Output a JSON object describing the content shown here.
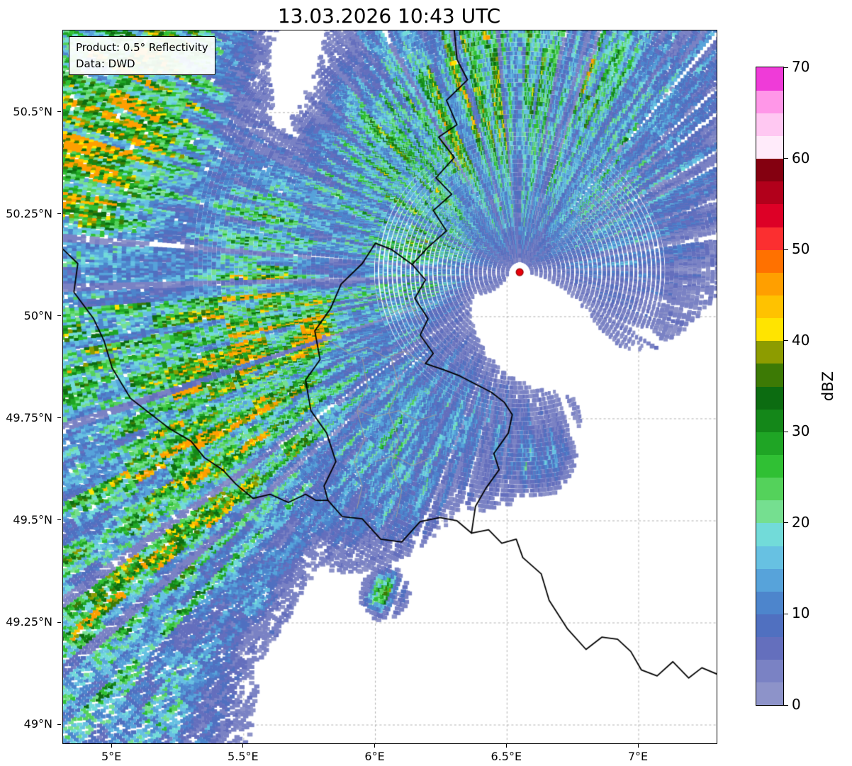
{
  "title": "13.03.2026 10:43 UTC",
  "annotation": {
    "line1": "Product: 0.5° Reflectivity",
    "line2": "Data: DWD"
  },
  "map": {
    "extent": {
      "lon_min": 4.814,
      "lon_max": 7.296,
      "lat_min": 48.955,
      "lat_max": 50.701
    },
    "x_ticks": [
      {
        "label": "5°E",
        "lon": 5.0
      },
      {
        "label": "5.5°E",
        "lon": 5.5
      },
      {
        "label": "6°E",
        "lon": 6.0
      },
      {
        "label": "6.5°E",
        "lon": 6.5
      },
      {
        "label": "7°E",
        "lon": 7.0
      }
    ],
    "y_ticks": [
      {
        "label": "50.5°N",
        "lat": 50.5
      },
      {
        "label": "50.25°N",
        "lat": 50.25
      },
      {
        "label": "50°N",
        "lat": 50.0
      },
      {
        "label": "49.75°N",
        "lat": 49.75
      },
      {
        "label": "49.5°N",
        "lat": 49.5
      },
      {
        "label": "49.25°N",
        "lat": 49.25
      },
      {
        "label": "49°N",
        "lat": 49.0
      }
    ],
    "grid_color": "#b0b0b0",
    "border_color": "#000000",
    "admin_border_color": "#9a9a9a",
    "radar_site": {
      "lon": 6.548,
      "lat": 50.109,
      "marker_color": "#e8000b",
      "marker_edge": "#8f0000"
    },
    "borders": [
      [
        [
          6.3,
          50.701
        ],
        [
          6.31,
          50.63
        ],
        [
          6.35,
          50.58
        ],
        [
          6.27,
          50.53
        ],
        [
          6.31,
          50.47
        ],
        [
          6.24,
          50.44
        ],
        [
          6.3,
          50.39
        ],
        [
          6.23,
          50.34
        ],
        [
          6.29,
          50.3
        ],
        [
          6.22,
          50.26
        ],
        [
          6.27,
          50.21
        ],
        [
          6.2,
          50.17
        ],
        [
          6.14,
          50.128
        ]
      ],
      [
        [
          6.14,
          50.128
        ],
        [
          6.19,
          50.09
        ],
        [
          6.15,
          50.045
        ],
        [
          6.2,
          49.995
        ],
        [
          6.17,
          49.955
        ],
        [
          6.22,
          49.91
        ],
        [
          6.19,
          49.885
        ],
        [
          6.26,
          49.87
        ],
        [
          6.32,
          49.855
        ],
        [
          6.38,
          49.835
        ],
        [
          6.44,
          49.815
        ],
        [
          6.49,
          49.79
        ],
        [
          6.52,
          49.76
        ],
        [
          6.505,
          49.715
        ],
        [
          6.45,
          49.665
        ],
        [
          6.47,
          49.625
        ],
        [
          6.42,
          49.58
        ],
        [
          6.38,
          49.535
        ],
        [
          6.365,
          49.47
        ]
      ],
      [
        [
          6.365,
          49.47
        ],
        [
          6.43,
          49.478
        ],
        [
          6.48,
          49.445
        ],
        [
          6.535,
          49.455
        ],
        [
          6.56,
          49.41
        ],
        [
          6.63,
          49.37
        ],
        [
          6.66,
          49.305
        ],
        [
          6.73,
          49.235
        ],
        [
          6.8,
          49.185
        ],
        [
          6.86,
          49.215
        ],
        [
          6.92,
          49.21
        ],
        [
          6.97,
          49.18
        ],
        [
          7.01,
          49.135
        ],
        [
          7.07,
          49.12
        ],
        [
          7.13,
          49.155
        ],
        [
          7.19,
          49.115
        ],
        [
          7.24,
          49.14
        ],
        [
          7.296,
          49.125
        ]
      ],
      [
        [
          6.14,
          50.128
        ],
        [
          6.06,
          50.165
        ],
        [
          6.0,
          50.18
        ],
        [
          5.95,
          50.13
        ],
        [
          5.87,
          50.08
        ],
        [
          5.83,
          50.02
        ],
        [
          5.77,
          49.965
        ],
        [
          5.79,
          49.895
        ],
        [
          5.735,
          49.845
        ],
        [
          5.755,
          49.77
        ],
        [
          5.815,
          49.715
        ],
        [
          5.85,
          49.645
        ],
        [
          5.805,
          49.585
        ],
        [
          5.82,
          49.55
        ]
      ],
      [
        [
          5.82,
          49.55
        ],
        [
          5.875,
          49.51
        ],
        [
          5.95,
          49.505
        ],
        [
          6.02,
          49.455
        ],
        [
          6.1,
          49.448
        ],
        [
          6.17,
          49.498
        ],
        [
          6.245,
          49.508
        ],
        [
          6.31,
          49.5
        ],
        [
          6.365,
          49.47
        ]
      ],
      [
        [
          4.814,
          50.165
        ],
        [
          4.87,
          50.13
        ],
        [
          4.855,
          50.06
        ],
        [
          4.93,
          49.995
        ],
        [
          4.97,
          49.94
        ],
        [
          5.0,
          49.875
        ],
        [
          5.07,
          49.8
        ],
        [
          5.15,
          49.76
        ],
        [
          5.22,
          49.725
        ],
        [
          5.3,
          49.695
        ],
        [
          5.35,
          49.655
        ],
        [
          5.42,
          49.625
        ],
        [
          5.47,
          49.59
        ],
        [
          5.535,
          49.555
        ],
        [
          5.6,
          49.565
        ],
        [
          5.67,
          49.545
        ],
        [
          5.735,
          49.565
        ],
        [
          5.775,
          49.55
        ],
        [
          5.82,
          49.55
        ]
      ]
    ],
    "admin_borders": [
      [
        [
          5.87,
          50.08
        ],
        [
          5.94,
          50.04
        ],
        [
          6.0,
          50.055
        ],
        [
          6.07,
          50.01
        ],
        [
          6.13,
          50.03
        ],
        [
          6.17,
          49.99
        ]
      ],
      [
        [
          5.83,
          49.94
        ],
        [
          5.9,
          49.91
        ],
        [
          5.97,
          49.925
        ],
        [
          6.04,
          49.9
        ],
        [
          6.11,
          49.915
        ],
        [
          6.19,
          49.885
        ]
      ],
      [
        [
          5.95,
          49.9
        ],
        [
          5.97,
          49.83
        ],
        [
          5.93,
          49.77
        ],
        [
          5.96,
          49.7
        ],
        [
          5.92,
          49.645
        ],
        [
          5.95,
          49.585
        ],
        [
          5.93,
          49.53
        ]
      ],
      [
        [
          6.06,
          49.9
        ],
        [
          6.09,
          49.83
        ],
        [
          6.05,
          49.765
        ],
        [
          6.09,
          49.7
        ],
        [
          6.06,
          49.64
        ],
        [
          6.1,
          49.575
        ],
        [
          6.08,
          49.51
        ]
      ],
      [
        [
          5.93,
          49.77
        ],
        [
          6.0,
          49.755
        ],
        [
          6.09,
          49.77
        ],
        [
          6.16,
          49.745
        ],
        [
          6.23,
          49.76
        ]
      ],
      [
        [
          6.0,
          49.645
        ],
        [
          6.07,
          49.66
        ],
        [
          6.14,
          49.635
        ],
        [
          6.21,
          49.655
        ]
      ]
    ]
  },
  "colorbar": {
    "label": "dBZ",
    "min": 0,
    "max": 70,
    "ticks": [
      {
        "label": "0",
        "value": 0
      },
      {
        "label": "10",
        "value": 10
      },
      {
        "label": "20",
        "value": 20
      },
      {
        "label": "30",
        "value": 30
      },
      {
        "label": "40",
        "value": 40
      },
      {
        "label": "50",
        "value": 50
      },
      {
        "label": "60",
        "value": 60
      },
      {
        "label": "70",
        "value": 70
      }
    ],
    "colors": [
      "#8d93c9",
      "#7a82c4",
      "#646fbd",
      "#5070c0",
      "#4d85cc",
      "#57a3da",
      "#67c1e2",
      "#72dbd9",
      "#75df90",
      "#54d25b",
      "#30c034",
      "#1fa525",
      "#148719",
      "#0c6c11",
      "#3c7a05",
      "#8d9c00",
      "#ffe400",
      "#ffc200",
      "#ff9f00",
      "#ff7100",
      "#fb2f30",
      "#dd0026",
      "#b2001b",
      "#840010",
      "#ffebfa",
      "#ffc8f2",
      "#ff97e8",
      "#ef3bd8"
    ]
  },
  "radar_field": {
    "max_range_deg": 1.65,
    "blobs": [
      [
        5.35,
        49.72,
        0.55,
        0.3,
        42,
        34
      ],
      [
        4.88,
        49.22,
        0.5,
        0.32,
        42,
        27
      ],
      [
        5.74,
        49.955,
        0.1,
        0.055,
        42,
        52
      ],
      [
        5.5,
        49.88,
        0.075,
        0.05,
        42,
        46
      ],
      [
        5.58,
        49.79,
        0.06,
        0.04,
        42,
        42
      ],
      [
        5.55,
        50.06,
        0.32,
        0.22,
        48,
        29
      ],
      [
        4.95,
        50.5,
        0.48,
        0.28,
        40,
        36
      ],
      [
        6.05,
        50.35,
        0.3,
        0.28,
        60,
        34
      ],
      [
        6.38,
        50.56,
        0.32,
        0.22,
        40,
        30
      ],
      [
        6.8,
        50.45,
        0.45,
        0.32,
        40,
        18
      ],
      [
        6.85,
        50.58,
        0.18,
        0.12,
        40,
        26
      ],
      [
        6.45,
        50.25,
        0.25,
        0.18,
        40,
        15
      ],
      [
        6.45,
        49.78,
        0.28,
        0.3,
        70,
        15
      ],
      [
        6.05,
        49.66,
        0.28,
        0.26,
        50,
        17
      ],
      [
        6.62,
        49.65,
        0.11,
        0.08,
        0,
        22
      ],
      [
        6.04,
        49.32,
        0.07,
        0.05,
        0,
        30
      ],
      [
        4.9,
        49.95,
        0.32,
        0.26,
        40,
        24
      ],
      [
        5.5,
        50.48,
        0.28,
        0.24,
        40,
        12
      ],
      [
        6.28,
        50.17,
        0.13,
        0.1,
        40,
        20
      ],
      [
        6.45,
        50.09,
        0.11,
        0.08,
        0,
        13
      ]
    ],
    "suppressors": [
      [
        6.56,
        49.97,
        0.17,
        0.13,
        0,
        16
      ],
      [
        5.98,
        50.24,
        0.18,
        0.13,
        30,
        12
      ],
      [
        6.25,
        49.22,
        0.38,
        0.22,
        0,
        12
      ],
      [
        5.8,
        50.55,
        0.22,
        0.18,
        0,
        12
      ],
      [
        6.85,
        49.4,
        0.3,
        0.25,
        0,
        10
      ]
    ]
  }
}
